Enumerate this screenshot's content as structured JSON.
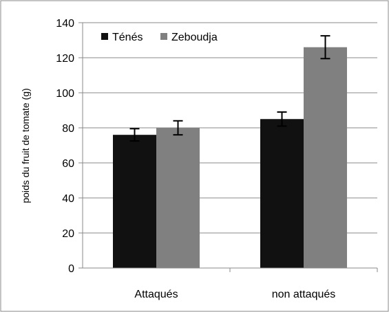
{
  "chart_data": {
    "type": "bar",
    "categories": [
      "Attaqués",
      "non attaqués"
    ],
    "series": [
      {
        "name": "Ténés",
        "color": "#111111",
        "values": [
          76,
          85
        ],
        "errors": [
          3.5,
          4
        ]
      },
      {
        "name": "Zeboudja",
        "color": "#808080",
        "values": [
          80,
          126
        ],
        "errors": [
          4,
          6.5
        ]
      }
    ],
    "ylabel": "poids du fruit de tomate (g)",
    "xlabel": "",
    "ylim": [
      0,
      140
    ],
    "yticks": [
      0,
      20,
      40,
      60,
      80,
      100,
      120,
      140
    ],
    "grid": true,
    "legend_position": "top-left"
  }
}
